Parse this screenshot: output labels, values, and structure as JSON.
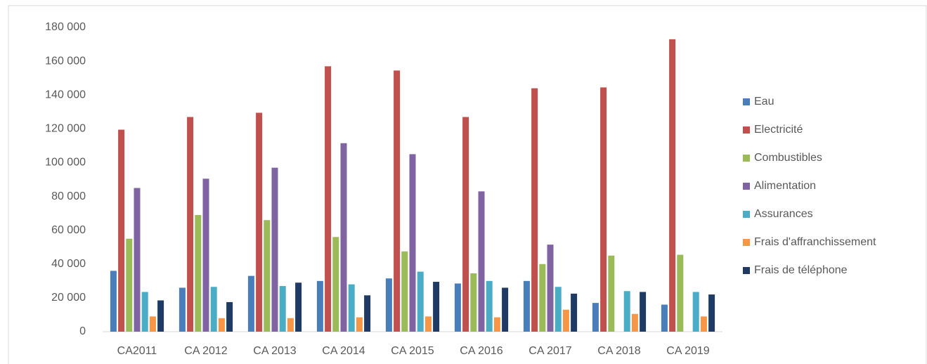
{
  "chart_data": {
    "type": "bar",
    "categories": [
      "CA2011",
      "CA 2012",
      "CA 2013",
      "CA 2014",
      "CA 2015",
      "CA 2016",
      "CA 2017",
      "CA 2018",
      "CA 2019"
    ],
    "series": [
      {
        "name": "Eau",
        "color": "#4a7ebb",
        "values": [
          36000,
          26000,
          33000,
          30000,
          31500,
          28500,
          30000,
          17000,
          16000
        ]
      },
      {
        "name": "Electricité",
        "color": "#c0504d",
        "values": [
          119500,
          127000,
          129500,
          157000,
          154500,
          127000,
          144000,
          144500,
          173000
        ]
      },
      {
        "name": "Combustibles",
        "color": "#9bbb59",
        "values": [
          55000,
          69000,
          66000,
          56000,
          47500,
          34500,
          40000,
          45000,
          45500
        ]
      },
      {
        "name": "Alimentation",
        "color": "#8064a2",
        "values": [
          85000,
          90500,
          97000,
          111500,
          105000,
          83000,
          51500,
          null,
          null
        ]
      },
      {
        "name": "Assurances",
        "color": "#4bacc6",
        "values": [
          23500,
          26500,
          27000,
          28000,
          35500,
          30000,
          26500,
          24000,
          23500
        ]
      },
      {
        "name": "Frais d'affranchissement",
        "color": "#f79646",
        "values": [
          9000,
          8000,
          8000,
          8500,
          9000,
          8500,
          13000,
          10500,
          9000
        ]
      },
      {
        "name": "Frais de téléphone",
        "color": "#1f3b63",
        "values": [
          18500,
          17500,
          29000,
          21500,
          29500,
          26000,
          22500,
          23500,
          22000
        ]
      }
    ],
    "ylim": [
      0,
      180000
    ],
    "yticks": [
      0,
      {
        "value": 20000,
        "label": "20 000"
      },
      {
        "value": 40000,
        "label": "40 000"
      },
      {
        "value": 60000,
        "label": "60 000"
      },
      {
        "value": 80000,
        "label": "80 000"
      },
      {
        "value": 100000,
        "label": "100 000"
      },
      {
        "value": 120000,
        "label": "120 000"
      },
      {
        "value": 140000,
        "label": "140 000"
      },
      {
        "value": 160000,
        "label": "160 000"
      },
      {
        "value": 180000,
        "label": "180 000"
      }
    ],
    "grid": false,
    "legend": "right"
  }
}
